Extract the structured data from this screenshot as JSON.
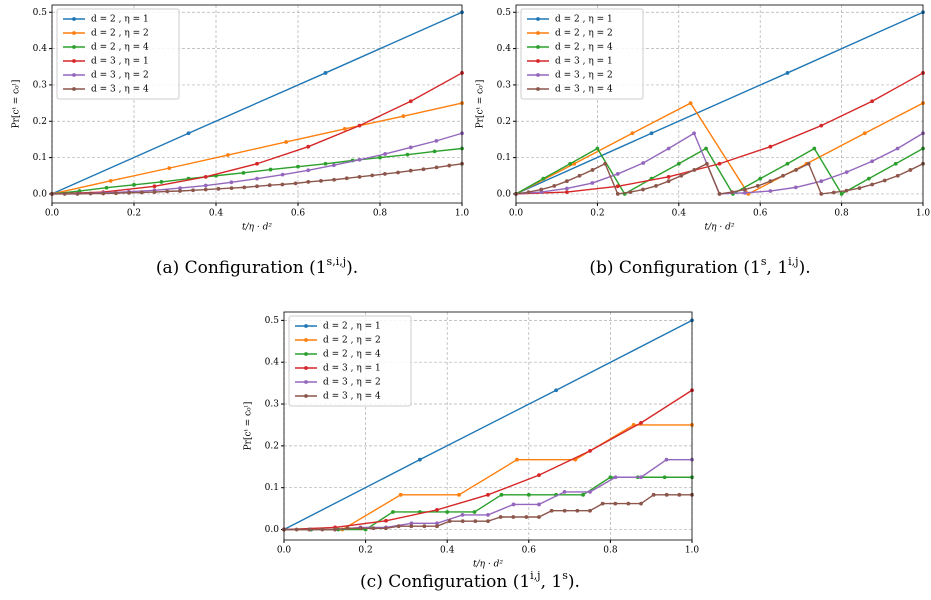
{
  "chart_data": [
    {
      "type": "line",
      "xlabel": "t/η · d²",
      "ylabel": "Pr[cᵗ = c₀ˡ]",
      "caption": [
        {
          "text": "(a) Configuration (1"
        },
        {
          "text": "s,i,j",
          "sup": true
        },
        {
          "text": ")."
        }
      ],
      "xlim": [
        0,
        1
      ],
      "ylim": [
        -0.025,
        0.52
      ],
      "xticks": [
        {
          "value": 0,
          "label": "0.0"
        },
        0.2,
        0.4,
        0.6,
        0.8,
        {
          "value": 1,
          "label": "1.0"
        }
      ],
      "yticks": [
        {
          "value": 0,
          "label": "0.0"
        },
        0.1,
        0.2,
        0.3,
        0.4,
        0.5
      ],
      "grid": true,
      "legend": "upper left",
      "series": [
        {
          "name": "d = 2 , η = 1",
          "color": "#1f77b4",
          "x": [
            0,
            0.333,
            0.667,
            1
          ],
          "values": [
            0,
            0.167,
            0.333,
            0.5
          ]
        },
        {
          "name": "d = 2 , η = 2",
          "color": "#ff7f0e",
          "x": [
            0,
            0.143,
            0.286,
            0.429,
            0.571,
            0.714,
            0.857,
            1
          ],
          "values": [
            0,
            0.036,
            0.071,
            0.107,
            0.143,
            0.179,
            0.214,
            0.25
          ]
        },
        {
          "name": "d = 2 , η = 4",
          "color": "#2ca02c",
          "x": [
            0,
            0.067,
            0.133,
            0.2,
            0.267,
            0.333,
            0.4,
            0.467,
            0.533,
            0.6,
            0.667,
            0.733,
            0.8,
            0.867,
            0.933,
            1
          ],
          "values": [
            0,
            0.008,
            0.017,
            0.025,
            0.033,
            0.042,
            0.05,
            0.058,
            0.067,
            0.075,
            0.083,
            0.092,
            0.1,
            0.108,
            0.117,
            0.125
          ]
        },
        {
          "name": "d = 3 , η = 1",
          "color": "#d62728",
          "x": [
            0,
            0.125,
            0.25,
            0.375,
            0.5,
            0.625,
            0.75,
            0.875,
            1
          ],
          "values": [
            0,
            0.005,
            0.021,
            0.047,
            0.083,
            0.13,
            0.188,
            0.255,
            0.333
          ]
        },
        {
          "name": "d = 3 , η = 2",
          "color": "#9467bd",
          "x": [
            0,
            0.0625,
            0.125,
            0.1875,
            0.25,
            0.3125,
            0.375,
            0.4375,
            0.5,
            0.5625,
            0.625,
            0.6875,
            0.75,
            0.8125,
            0.875,
            0.9375,
            1
          ],
          "values": [
            0,
            0.001,
            0.003,
            0.006,
            0.01,
            0.016,
            0.023,
            0.032,
            0.042,
            0.053,
            0.065,
            0.079,
            0.094,
            0.11,
            0.128,
            0.146,
            0.167
          ]
        },
        {
          "name": "d = 3 , η = 4",
          "color": "#8c564b",
          "x": [
            0,
            0.031,
            0.062,
            0.094,
            0.125,
            0.156,
            0.188,
            0.219,
            0.25,
            0.281,
            0.312,
            0.344,
            0.375,
            0.406,
            0.438,
            0.469,
            0.5,
            0.531,
            0.562,
            0.594,
            0.625,
            0.656,
            0.688,
            0.719,
            0.75,
            0.781,
            0.812,
            0.844,
            0.875,
            0.906,
            0.938,
            0.969,
            1
          ],
          "values": [
            0,
            0,
            0,
            0.001,
            0.001,
            0.002,
            0.003,
            0.004,
            0.005,
            0.007,
            0.008,
            0.01,
            0.012,
            0.014,
            0.016,
            0.018,
            0.021,
            0.024,
            0.026,
            0.029,
            0.033,
            0.036,
            0.039,
            0.043,
            0.047,
            0.051,
            0.055,
            0.059,
            0.064,
            0.068,
            0.073,
            0.078,
            0.083
          ]
        }
      ]
    },
    {
      "type": "line",
      "xlabel": "t/η · d²",
      "ylabel": "Pr[cᵗ = c₀ˡ]",
      "caption": [
        {
          "text": "(b) Configuration (1"
        },
        {
          "text": "s",
          "sup": true
        },
        {
          "text": ", 1"
        },
        {
          "text": "i,j",
          "sup": true
        },
        {
          "text": ")."
        }
      ],
      "xlim": [
        0,
        1
      ],
      "ylim": [
        -0.025,
        0.52
      ],
      "xticks": [
        {
          "value": 0,
          "label": "0.0"
        },
        0.2,
        0.4,
        0.6,
        0.8,
        {
          "value": 1,
          "label": "1.0"
        }
      ],
      "yticks": [
        {
          "value": 0,
          "label": "0.0"
        },
        0.1,
        0.2,
        0.3,
        0.4,
        0.5
      ],
      "grid": true,
      "legend": "upper left",
      "series": [
        {
          "name": "d = 2 , η = 1",
          "color": "#1f77b4",
          "x": [
            0,
            0.333,
            0.667,
            1
          ],
          "values": [
            0,
            0.167,
            0.333,
            0.5
          ]
        },
        {
          "name": "d = 2 , η = 2",
          "color": "#ff7f0e",
          "x": [
            0,
            0.143,
            0.286,
            0.429,
            0.571,
            0.714,
            0.857,
            1
          ],
          "values": [
            0,
            0.083,
            0.167,
            0.25,
            0,
            0.083,
            0.167,
            0.25
          ]
        },
        {
          "name": "d = 2 , η = 4",
          "color": "#2ca02c",
          "x": [
            0,
            0.067,
            0.133,
            0.2,
            0.267,
            0.333,
            0.4,
            0.467,
            0.533,
            0.6,
            0.667,
            0.733,
            0.8,
            0.867,
            0.933,
            1
          ],
          "values": [
            0,
            0.042,
            0.083,
            0.125,
            0,
            0.042,
            0.083,
            0.125,
            0,
            0.042,
            0.083,
            0.125,
            0,
            0.042,
            0.083,
            0.125
          ]
        },
        {
          "name": "d = 3 , η = 1",
          "color": "#d62728",
          "x": [
            0,
            0.125,
            0.25,
            0.375,
            0.5,
            0.625,
            0.75,
            0.875,
            1
          ],
          "values": [
            0,
            0.005,
            0.021,
            0.047,
            0.083,
            0.13,
            0.188,
            0.255,
            0.333
          ]
        },
        {
          "name": "d = 3 , η = 2",
          "color": "#9467bd",
          "x": [
            0,
            0.0625,
            0.125,
            0.1875,
            0.25,
            0.3125,
            0.375,
            0.4375,
            0.5,
            0.5625,
            0.625,
            0.6875,
            0.75,
            0.8125,
            0.875,
            0.9375,
            1
          ],
          "values": [
            0,
            0.005,
            0.015,
            0.03,
            0.055,
            0.085,
            0.125,
            0.167,
            0,
            0.003,
            0.008,
            0.018,
            0.035,
            0.06,
            0.09,
            0.125,
            0.167
          ]
        },
        {
          "name": "d = 3 , η = 4",
          "color": "#8c564b",
          "x": [
            0,
            0.031,
            0.062,
            0.094,
            0.125,
            0.156,
            0.188,
            0.219,
            0.25,
            0.281,
            0.312,
            0.344,
            0.375,
            0.406,
            0.438,
            0.469,
            0.5,
            0.531,
            0.562,
            0.594,
            0.625,
            0.656,
            0.688,
            0.719,
            0.75,
            0.781,
            0.812,
            0.844,
            0.875,
            0.906,
            0.938,
            0.969,
            1
          ],
          "values": [
            0,
            0.005,
            0.012,
            0.022,
            0.035,
            0.05,
            0.066,
            0.083,
            0,
            0.005,
            0.012,
            0.022,
            0.035,
            0.05,
            0.066,
            0.083,
            0,
            0.005,
            0.012,
            0.022,
            0.035,
            0.05,
            0.066,
            0.083,
            0,
            0.004,
            0.009,
            0.016,
            0.026,
            0.037,
            0.05,
            0.066,
            0.083
          ]
        }
      ]
    },
    {
      "type": "line",
      "xlabel": "t/η · d²",
      "ylabel": "Pr[cᵗ = c₀ˡ]",
      "caption": [
        {
          "text": "(c) Configuration (1"
        },
        {
          "text": "i,j",
          "sup": true
        },
        {
          "text": ", 1"
        },
        {
          "text": "s",
          "sup": true
        },
        {
          "text": ")."
        }
      ],
      "xlim": [
        0,
        1
      ],
      "ylim": [
        -0.025,
        0.52
      ],
      "xticks": [
        {
          "value": 0,
          "label": "0.0"
        },
        0.2,
        0.4,
        0.6,
        0.8,
        {
          "value": 1,
          "label": "1.0"
        }
      ],
      "yticks": [
        {
          "value": 0,
          "label": "0.0"
        },
        0.1,
        0.2,
        0.3,
        0.4,
        0.5
      ],
      "grid": true,
      "legend": "upper left",
      "series": [
        {
          "name": "d = 2 , η = 1",
          "color": "#1f77b4",
          "x": [
            0,
            0.333,
            0.667,
            1
          ],
          "values": [
            0,
            0.167,
            0.333,
            0.5
          ]
        },
        {
          "name": "d = 2 , η = 2",
          "color": "#ff7f0e",
          "x": [
            0,
            0.143,
            0.286,
            0.429,
            0.571,
            0.714,
            0.857,
            1
          ],
          "values": [
            0,
            0,
            0.083,
            0.083,
            0.167,
            0.167,
            0.25,
            0.25
          ]
        },
        {
          "name": "d = 2 , η = 4",
          "color": "#2ca02c",
          "x": [
            0,
            0.067,
            0.133,
            0.2,
            0.267,
            0.333,
            0.4,
            0.467,
            0.533,
            0.6,
            0.667,
            0.733,
            0.8,
            0.867,
            0.933,
            1
          ],
          "values": [
            0,
            0,
            0,
            0,
            0.042,
            0.042,
            0.042,
            0.042,
            0.083,
            0.083,
            0.083,
            0.083,
            0.125,
            0.125,
            0.125,
            0.125
          ]
        },
        {
          "name": "d = 3 , η = 1",
          "color": "#d62728",
          "x": [
            0,
            0.125,
            0.25,
            0.375,
            0.5,
            0.625,
            0.75,
            0.875,
            1
          ],
          "values": [
            0,
            0.005,
            0.021,
            0.047,
            0.083,
            0.13,
            0.188,
            0.255,
            0.333
          ]
        },
        {
          "name": "d = 3 , η = 2",
          "color": "#9467bd",
          "x": [
            0,
            0.0625,
            0.125,
            0.1875,
            0.25,
            0.3125,
            0.375,
            0.4375,
            0.5,
            0.5625,
            0.625,
            0.6875,
            0.75,
            0.8125,
            0.875,
            0.9375,
            1
          ],
          "values": [
            0,
            0,
            0,
            0.005,
            0.005,
            0.015,
            0.015,
            0.035,
            0.035,
            0.06,
            0.06,
            0.09,
            0.09,
            0.125,
            0.125,
            0.167,
            0.167
          ]
        },
        {
          "name": "d = 3 , η = 4",
          "color": "#8c564b",
          "x": [
            0,
            0.031,
            0.062,
            0.094,
            0.125,
            0.156,
            0.188,
            0.219,
            0.25,
            0.281,
            0.312,
            0.344,
            0.375,
            0.406,
            0.438,
            0.469,
            0.5,
            0.531,
            0.562,
            0.594,
            0.625,
            0.656,
            0.688,
            0.719,
            0.75,
            0.781,
            0.812,
            0.844,
            0.875,
            0.906,
            0.938,
            0.969,
            1
          ],
          "values": [
            0,
            0,
            0,
            0,
            0,
            0.003,
            0.003,
            0.003,
            0.003,
            0.008,
            0.008,
            0.008,
            0.008,
            0.02,
            0.02,
            0.02,
            0.02,
            0.03,
            0.03,
            0.03,
            0.03,
            0.045,
            0.045,
            0.045,
            0.045,
            0.062,
            0.062,
            0.062,
            0.062,
            0.083,
            0.083,
            0.083,
            0.083
          ]
        }
      ]
    }
  ]
}
